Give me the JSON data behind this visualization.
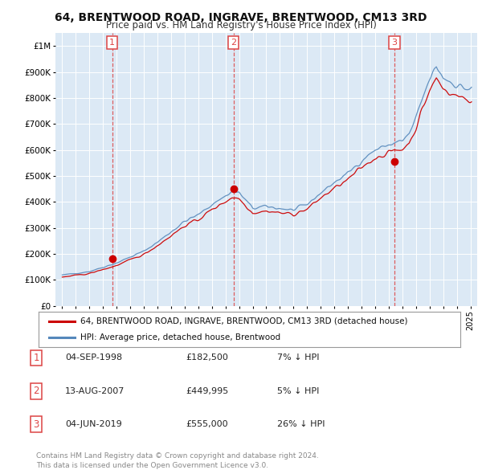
{
  "title": "64, BRENTWOOD ROAD, INGRAVE, BRENTWOOD, CM13 3RD",
  "subtitle": "Price paid vs. HM Land Registry's House Price Index (HPI)",
  "background_color": "#ffffff",
  "plot_bg_color": "#dce9f5",
  "grid_color": "#ffffff",
  "sale_points": [
    {
      "year": 1998.67,
      "price": 182500,
      "label": "1"
    },
    {
      "year": 2007.58,
      "price": 449995,
      "label": "2"
    },
    {
      "year": 2019.42,
      "price": 555000,
      "label": "3"
    }
  ],
  "sale_dates": [
    "04-SEP-1998",
    "13-AUG-2007",
    "04-JUN-2019"
  ],
  "sale_prices": [
    "£182,500",
    "£449,995",
    "£555,000"
  ],
  "sale_hpi": [
    "7% ↓ HPI",
    "5% ↓ HPI",
    "26% ↓ HPI"
  ],
  "legend_entries": [
    "64, BRENTWOOD ROAD, INGRAVE, BRENTWOOD, CM13 3RD (detached house)",
    "HPI: Average price, detached house, Brentwood"
  ],
  "red_line_color": "#cc0000",
  "blue_line_color": "#5588bb",
  "dashed_line_color": "#dd4444",
  "footnote": "Contains HM Land Registry data © Crown copyright and database right 2024.\nThis data is licensed under the Open Government Licence v3.0.",
  "ylim": [
    0,
    1050000
  ],
  "yticks": [
    0,
    100000,
    200000,
    300000,
    400000,
    500000,
    600000,
    700000,
    800000,
    900000,
    1000000
  ],
  "ytick_labels": [
    "£0",
    "£100K",
    "£200K",
    "£300K",
    "£400K",
    "£500K",
    "£600K",
    "£700K",
    "£800K",
    "£900K",
    "£1M"
  ],
  "xlim": [
    1994.5,
    2025.5
  ]
}
